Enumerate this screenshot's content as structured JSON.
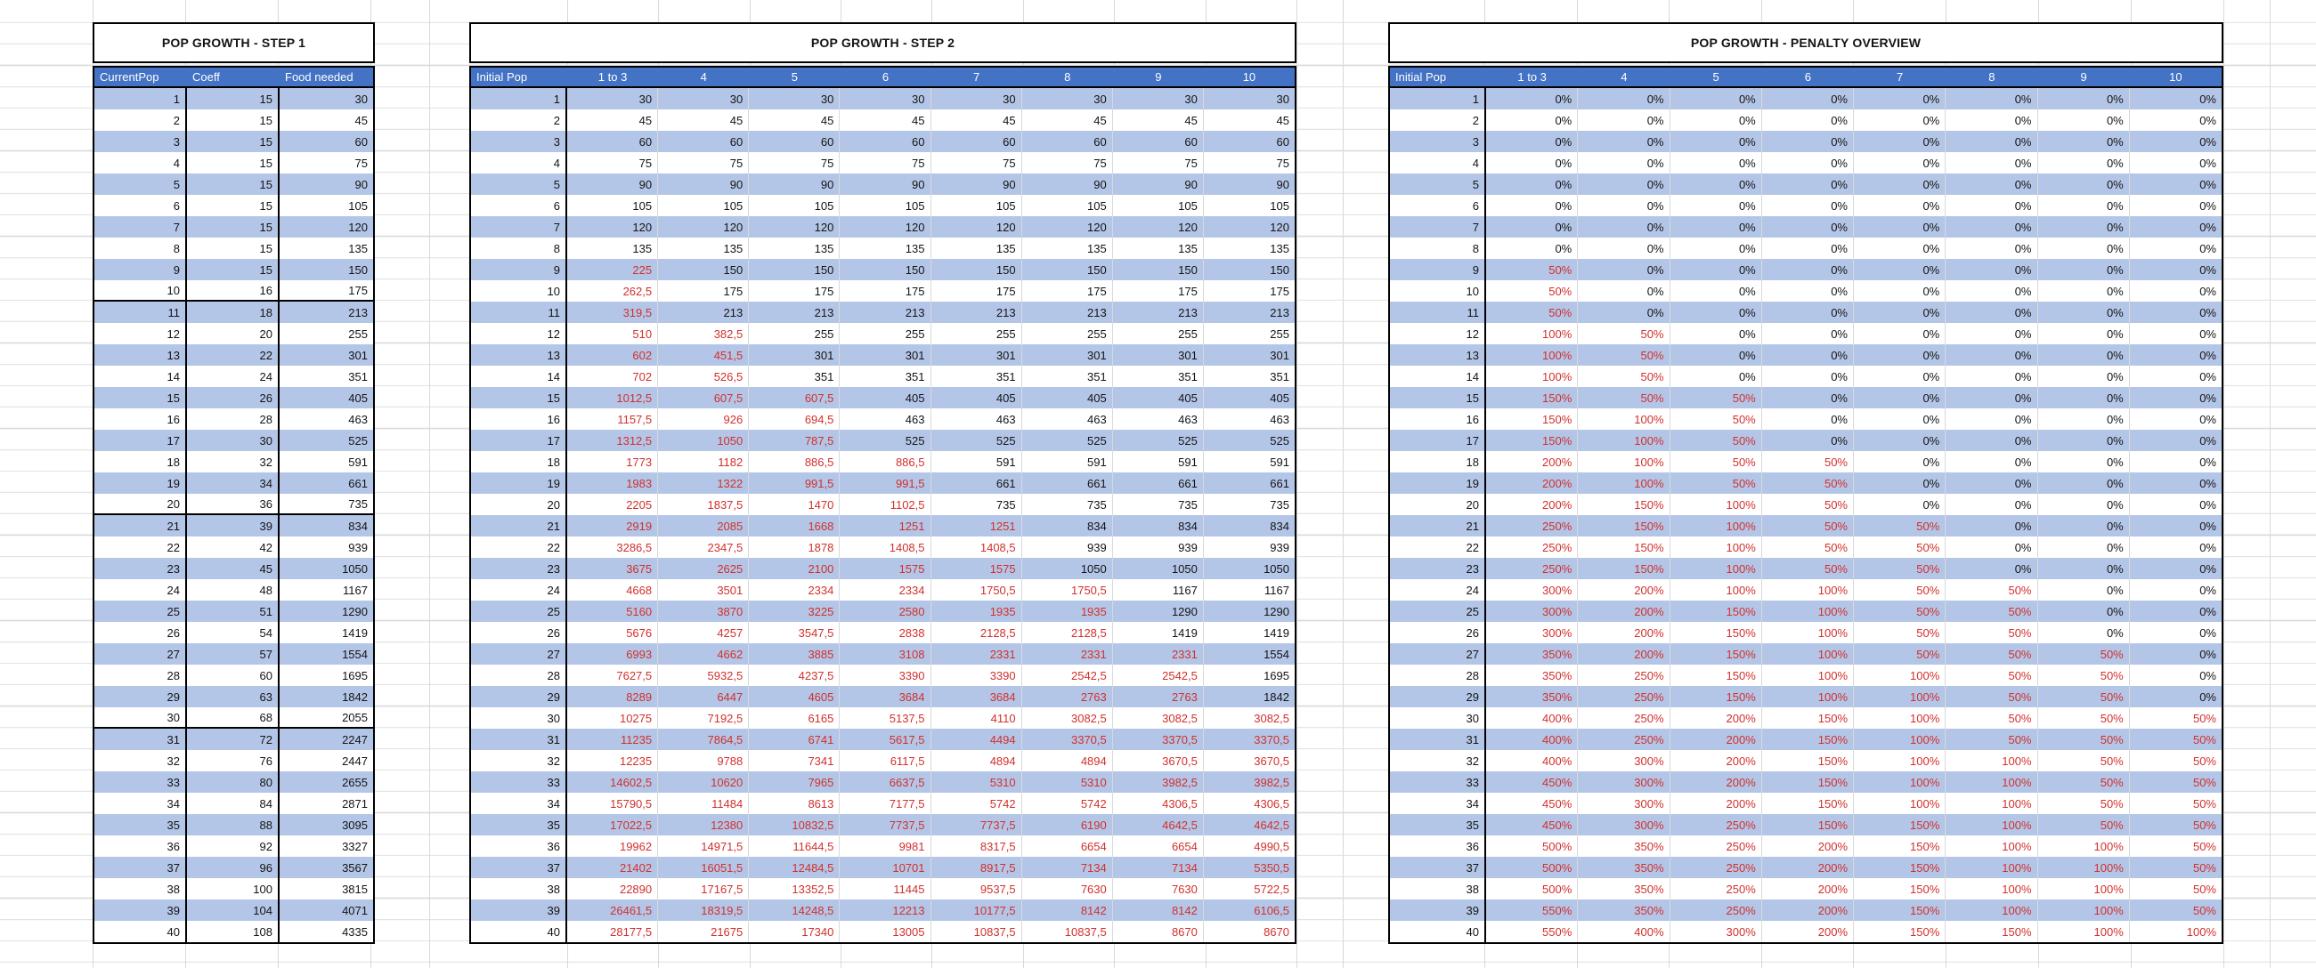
{
  "colors": {
    "header_blue": "#4472c4",
    "band_blue": "#b4c6e7",
    "red_text": "#d2302c",
    "gridline": "#d9d9d9",
    "border_black": "#000000"
  },
  "table1": {
    "title": "POP GROWTH - STEP 1",
    "headers": [
      "CurrentPop",
      "Coeff",
      "Food needed"
    ],
    "rows": [
      [
        "1",
        "15",
        "30"
      ],
      [
        "2",
        "15",
        "45"
      ],
      [
        "3",
        "15",
        "60"
      ],
      [
        "4",
        "15",
        "75"
      ],
      [
        "5",
        "15",
        "90"
      ],
      [
        "6",
        "15",
        "105"
      ],
      [
        "7",
        "15",
        "120"
      ],
      [
        "8",
        "15",
        "135"
      ],
      [
        "9",
        "15",
        "150"
      ],
      [
        "10",
        "16",
        "175"
      ],
      [
        "11",
        "18",
        "213"
      ],
      [
        "12",
        "20",
        "255"
      ],
      [
        "13",
        "22",
        "301"
      ],
      [
        "14",
        "24",
        "351"
      ],
      [
        "15",
        "26",
        "405"
      ],
      [
        "16",
        "28",
        "463"
      ],
      [
        "17",
        "30",
        "525"
      ],
      [
        "18",
        "32",
        "591"
      ],
      [
        "19",
        "34",
        "661"
      ],
      [
        "20",
        "36",
        "735"
      ],
      [
        "21",
        "39",
        "834"
      ],
      [
        "22",
        "42",
        "939"
      ],
      [
        "23",
        "45",
        "1050"
      ],
      [
        "24",
        "48",
        "1167"
      ],
      [
        "25",
        "51",
        "1290"
      ],
      [
        "26",
        "54",
        "1419"
      ],
      [
        "27",
        "57",
        "1554"
      ],
      [
        "28",
        "60",
        "1695"
      ],
      [
        "29",
        "63",
        "1842"
      ],
      [
        "30",
        "68",
        "2055"
      ],
      [
        "31",
        "72",
        "2247"
      ],
      [
        "32",
        "76",
        "2447"
      ],
      [
        "33",
        "80",
        "2655"
      ],
      [
        "34",
        "84",
        "2871"
      ],
      [
        "35",
        "88",
        "3095"
      ],
      [
        "36",
        "92",
        "3327"
      ],
      [
        "37",
        "96",
        "3567"
      ],
      [
        "38",
        "100",
        "3815"
      ],
      [
        "39",
        "104",
        "4071"
      ],
      [
        "40",
        "108",
        "4335"
      ]
    ]
  },
  "table2": {
    "title": "POP GROWTH - STEP 2",
    "headers": [
      "Initial Pop",
      "1 to 3",
      "4",
      "5",
      "6",
      "7",
      "8",
      "9",
      "10"
    ],
    "rows": [
      [
        "1",
        "30",
        "30",
        "30",
        "30",
        "30",
        "30",
        "30",
        "30"
      ],
      [
        "2",
        "45",
        "45",
        "45",
        "45",
        "45",
        "45",
        "45",
        "45"
      ],
      [
        "3",
        "60",
        "60",
        "60",
        "60",
        "60",
        "60",
        "60",
        "60"
      ],
      [
        "4",
        "75",
        "75",
        "75",
        "75",
        "75",
        "75",
        "75",
        "75"
      ],
      [
        "5",
        "90",
        "90",
        "90",
        "90",
        "90",
        "90",
        "90",
        "90"
      ],
      [
        "6",
        "105",
        "105",
        "105",
        "105",
        "105",
        "105",
        "105",
        "105"
      ],
      [
        "7",
        "120",
        "120",
        "120",
        "120",
        "120",
        "120",
        "120",
        "120"
      ],
      [
        "8",
        "135",
        "135",
        "135",
        "135",
        "135",
        "135",
        "135",
        "135"
      ],
      [
        "9",
        "225",
        "150",
        "150",
        "150",
        "150",
        "150",
        "150",
        "150"
      ],
      [
        "10",
        "262,5",
        "175",
        "175",
        "175",
        "175",
        "175",
        "175",
        "175"
      ],
      [
        "11",
        "319,5",
        "213",
        "213",
        "213",
        "213",
        "213",
        "213",
        "213"
      ],
      [
        "12",
        "510",
        "382,5",
        "255",
        "255",
        "255",
        "255",
        "255",
        "255"
      ],
      [
        "13",
        "602",
        "451,5",
        "301",
        "301",
        "301",
        "301",
        "301",
        "301"
      ],
      [
        "14",
        "702",
        "526,5",
        "351",
        "351",
        "351",
        "351",
        "351",
        "351"
      ],
      [
        "15",
        "1012,5",
        "607,5",
        "607,5",
        "405",
        "405",
        "405",
        "405",
        "405"
      ],
      [
        "16",
        "1157,5",
        "926",
        "694,5",
        "463",
        "463",
        "463",
        "463",
        "463"
      ],
      [
        "17",
        "1312,5",
        "1050",
        "787,5",
        "525",
        "525",
        "525",
        "525",
        "525"
      ],
      [
        "18",
        "1773",
        "1182",
        "886,5",
        "886,5",
        "591",
        "591",
        "591",
        "591"
      ],
      [
        "19",
        "1983",
        "1322",
        "991,5",
        "991,5",
        "661",
        "661",
        "661",
        "661"
      ],
      [
        "20",
        "2205",
        "1837,5",
        "1470",
        "1102,5",
        "735",
        "735",
        "735",
        "735"
      ],
      [
        "21",
        "2919",
        "2085",
        "1668",
        "1251",
        "1251",
        "834",
        "834",
        "834"
      ],
      [
        "22",
        "3286,5",
        "2347,5",
        "1878",
        "1408,5",
        "1408,5",
        "939",
        "939",
        "939"
      ],
      [
        "23",
        "3675",
        "2625",
        "2100",
        "1575",
        "1575",
        "1050",
        "1050",
        "1050"
      ],
      [
        "24",
        "4668",
        "3501",
        "2334",
        "2334",
        "1750,5",
        "1750,5",
        "1167",
        "1167"
      ],
      [
        "25",
        "5160",
        "3870",
        "3225",
        "2580",
        "1935",
        "1935",
        "1290",
        "1290"
      ],
      [
        "26",
        "5676",
        "4257",
        "3547,5",
        "2838",
        "2128,5",
        "2128,5",
        "1419",
        "1419"
      ],
      [
        "27",
        "6993",
        "4662",
        "3885",
        "3108",
        "2331",
        "2331",
        "2331",
        "1554"
      ],
      [
        "28",
        "7627,5",
        "5932,5",
        "4237,5",
        "3390",
        "3390",
        "2542,5",
        "2542,5",
        "1695"
      ],
      [
        "29",
        "8289",
        "6447",
        "4605",
        "3684",
        "3684",
        "2763",
        "2763",
        "1842"
      ],
      [
        "30",
        "10275",
        "7192,5",
        "6165",
        "5137,5",
        "4110",
        "3082,5",
        "3082,5",
        "3082,5"
      ],
      [
        "31",
        "11235",
        "7864,5",
        "6741",
        "5617,5",
        "4494",
        "3370,5",
        "3370,5",
        "3370,5"
      ],
      [
        "32",
        "12235",
        "9788",
        "7341",
        "6117,5",
        "4894",
        "4894",
        "3670,5",
        "3670,5"
      ],
      [
        "33",
        "14602,5",
        "10620",
        "7965",
        "6637,5",
        "5310",
        "5310",
        "3982,5",
        "3982,5"
      ],
      [
        "34",
        "15790,5",
        "11484",
        "8613",
        "7177,5",
        "5742",
        "5742",
        "4306,5",
        "4306,5"
      ],
      [
        "35",
        "17022,5",
        "12380",
        "10832,5",
        "7737,5",
        "7737,5",
        "6190",
        "4642,5",
        "4642,5"
      ],
      [
        "36",
        "19962",
        "14971,5",
        "11644,5",
        "9981",
        "8317,5",
        "6654",
        "6654",
        "4990,5"
      ],
      [
        "37",
        "21402",
        "16051,5",
        "12484,5",
        "10701",
        "8917,5",
        "7134",
        "7134",
        "5350,5"
      ],
      [
        "38",
        "22890",
        "17167,5",
        "13352,5",
        "11445",
        "9537,5",
        "7630",
        "7630",
        "5722,5"
      ],
      [
        "39",
        "26461,5",
        "18319,5",
        "14248,5",
        "12213",
        "10177,5",
        "8142",
        "8142",
        "6106,5"
      ],
      [
        "40",
        "28177,5",
        "21675",
        "17340",
        "13005",
        "10837,5",
        "10837,5",
        "8670",
        "8670"
      ]
    ]
  },
  "table3": {
    "title": "POP GROWTH - PENALTY OVERVIEW",
    "headers": [
      "Initial Pop",
      "1 to 3",
      "4",
      "5",
      "6",
      "7",
      "8",
      "9",
      "10"
    ],
    "rows": [
      [
        "1",
        "0%",
        "0%",
        "0%",
        "0%",
        "0%",
        "0%",
        "0%",
        "0%"
      ],
      [
        "2",
        "0%",
        "0%",
        "0%",
        "0%",
        "0%",
        "0%",
        "0%",
        "0%"
      ],
      [
        "3",
        "0%",
        "0%",
        "0%",
        "0%",
        "0%",
        "0%",
        "0%",
        "0%"
      ],
      [
        "4",
        "0%",
        "0%",
        "0%",
        "0%",
        "0%",
        "0%",
        "0%",
        "0%"
      ],
      [
        "5",
        "0%",
        "0%",
        "0%",
        "0%",
        "0%",
        "0%",
        "0%",
        "0%"
      ],
      [
        "6",
        "0%",
        "0%",
        "0%",
        "0%",
        "0%",
        "0%",
        "0%",
        "0%"
      ],
      [
        "7",
        "0%",
        "0%",
        "0%",
        "0%",
        "0%",
        "0%",
        "0%",
        "0%"
      ],
      [
        "8",
        "0%",
        "0%",
        "0%",
        "0%",
        "0%",
        "0%",
        "0%",
        "0%"
      ],
      [
        "9",
        "50%",
        "0%",
        "0%",
        "0%",
        "0%",
        "0%",
        "0%",
        "0%"
      ],
      [
        "10",
        "50%",
        "0%",
        "0%",
        "0%",
        "0%",
        "0%",
        "0%",
        "0%"
      ],
      [
        "11",
        "50%",
        "0%",
        "0%",
        "0%",
        "0%",
        "0%",
        "0%",
        "0%"
      ],
      [
        "12",
        "100%",
        "50%",
        "0%",
        "0%",
        "0%",
        "0%",
        "0%",
        "0%"
      ],
      [
        "13",
        "100%",
        "50%",
        "0%",
        "0%",
        "0%",
        "0%",
        "0%",
        "0%"
      ],
      [
        "14",
        "100%",
        "50%",
        "0%",
        "0%",
        "0%",
        "0%",
        "0%",
        "0%"
      ],
      [
        "15",
        "150%",
        "50%",
        "50%",
        "0%",
        "0%",
        "0%",
        "0%",
        "0%"
      ],
      [
        "16",
        "150%",
        "100%",
        "50%",
        "0%",
        "0%",
        "0%",
        "0%",
        "0%"
      ],
      [
        "17",
        "150%",
        "100%",
        "50%",
        "0%",
        "0%",
        "0%",
        "0%",
        "0%"
      ],
      [
        "18",
        "200%",
        "100%",
        "50%",
        "50%",
        "0%",
        "0%",
        "0%",
        "0%"
      ],
      [
        "19",
        "200%",
        "100%",
        "50%",
        "50%",
        "0%",
        "0%",
        "0%",
        "0%"
      ],
      [
        "20",
        "200%",
        "150%",
        "100%",
        "50%",
        "0%",
        "0%",
        "0%",
        "0%"
      ],
      [
        "21",
        "250%",
        "150%",
        "100%",
        "50%",
        "50%",
        "0%",
        "0%",
        "0%"
      ],
      [
        "22",
        "250%",
        "150%",
        "100%",
        "50%",
        "50%",
        "0%",
        "0%",
        "0%"
      ],
      [
        "23",
        "250%",
        "150%",
        "100%",
        "50%",
        "50%",
        "0%",
        "0%",
        "0%"
      ],
      [
        "24",
        "300%",
        "200%",
        "100%",
        "100%",
        "50%",
        "50%",
        "0%",
        "0%"
      ],
      [
        "25",
        "300%",
        "200%",
        "150%",
        "100%",
        "50%",
        "50%",
        "0%",
        "0%"
      ],
      [
        "26",
        "300%",
        "200%",
        "150%",
        "100%",
        "50%",
        "50%",
        "0%",
        "0%"
      ],
      [
        "27",
        "350%",
        "200%",
        "150%",
        "100%",
        "50%",
        "50%",
        "50%",
        "0%"
      ],
      [
        "28",
        "350%",
        "250%",
        "150%",
        "100%",
        "100%",
        "50%",
        "50%",
        "0%"
      ],
      [
        "29",
        "350%",
        "250%",
        "150%",
        "100%",
        "100%",
        "50%",
        "50%",
        "0%"
      ],
      [
        "30",
        "400%",
        "250%",
        "200%",
        "150%",
        "100%",
        "50%",
        "50%",
        "50%"
      ],
      [
        "31",
        "400%",
        "250%",
        "200%",
        "150%",
        "100%",
        "50%",
        "50%",
        "50%"
      ],
      [
        "32",
        "400%",
        "300%",
        "200%",
        "150%",
        "100%",
        "100%",
        "50%",
        "50%"
      ],
      [
        "33",
        "450%",
        "300%",
        "200%",
        "150%",
        "100%",
        "100%",
        "50%",
        "50%"
      ],
      [
        "34",
        "450%",
        "300%",
        "200%",
        "150%",
        "100%",
        "100%",
        "50%",
        "50%"
      ],
      [
        "35",
        "450%",
        "300%",
        "250%",
        "150%",
        "150%",
        "100%",
        "50%",
        "50%"
      ],
      [
        "36",
        "500%",
        "350%",
        "250%",
        "200%",
        "150%",
        "100%",
        "100%",
        "50%"
      ],
      [
        "37",
        "500%",
        "350%",
        "250%",
        "200%",
        "150%",
        "100%",
        "100%",
        "50%"
      ],
      [
        "38",
        "500%",
        "350%",
        "250%",
        "200%",
        "150%",
        "100%",
        "100%",
        "50%"
      ],
      [
        "39",
        "550%",
        "350%",
        "250%",
        "200%",
        "150%",
        "100%",
        "100%",
        "50%"
      ],
      [
        "40",
        "550%",
        "400%",
        "300%",
        "200%",
        "150%",
        "150%",
        "100%",
        "100%"
      ]
    ]
  }
}
